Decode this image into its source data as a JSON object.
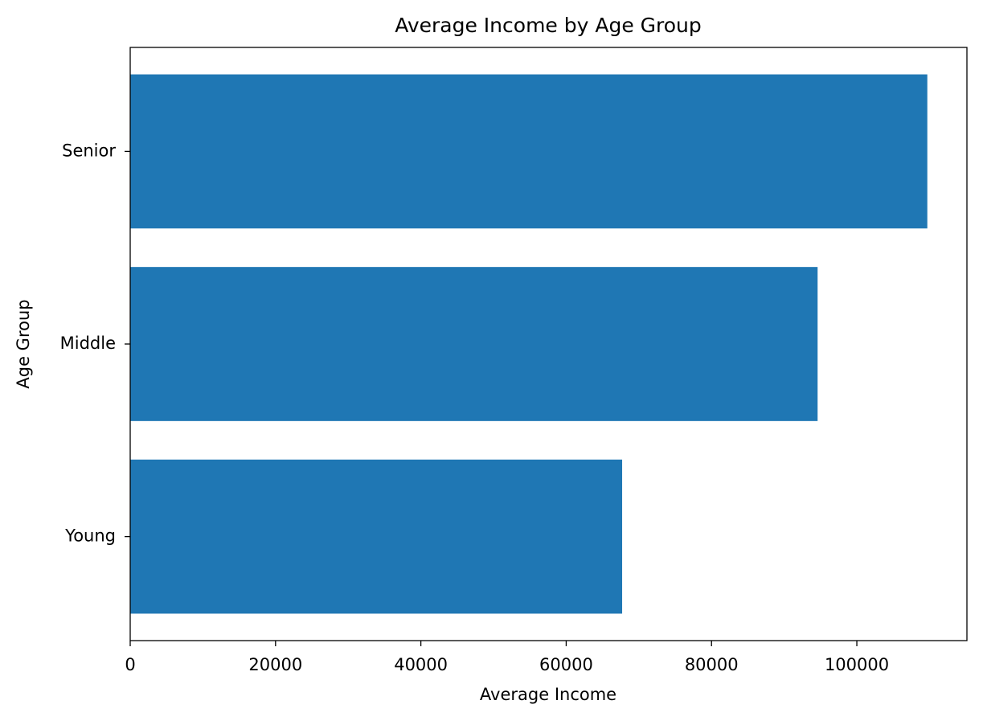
{
  "chart_data": {
    "type": "bar",
    "orientation": "horizontal",
    "title": "Average Income by Age Group",
    "x_label": "Average Income",
    "y_label": "Age Group",
    "categories": [
      "Young",
      "Middle",
      "Senior"
    ],
    "values": [
      67700,
      94600,
      109700
    ],
    "color": "#1f77b4",
    "xlim": [
      0,
      115150
    ],
    "xticks": [
      0,
      20000,
      40000,
      60000,
      80000,
      100000
    ],
    "grid": false
  }
}
